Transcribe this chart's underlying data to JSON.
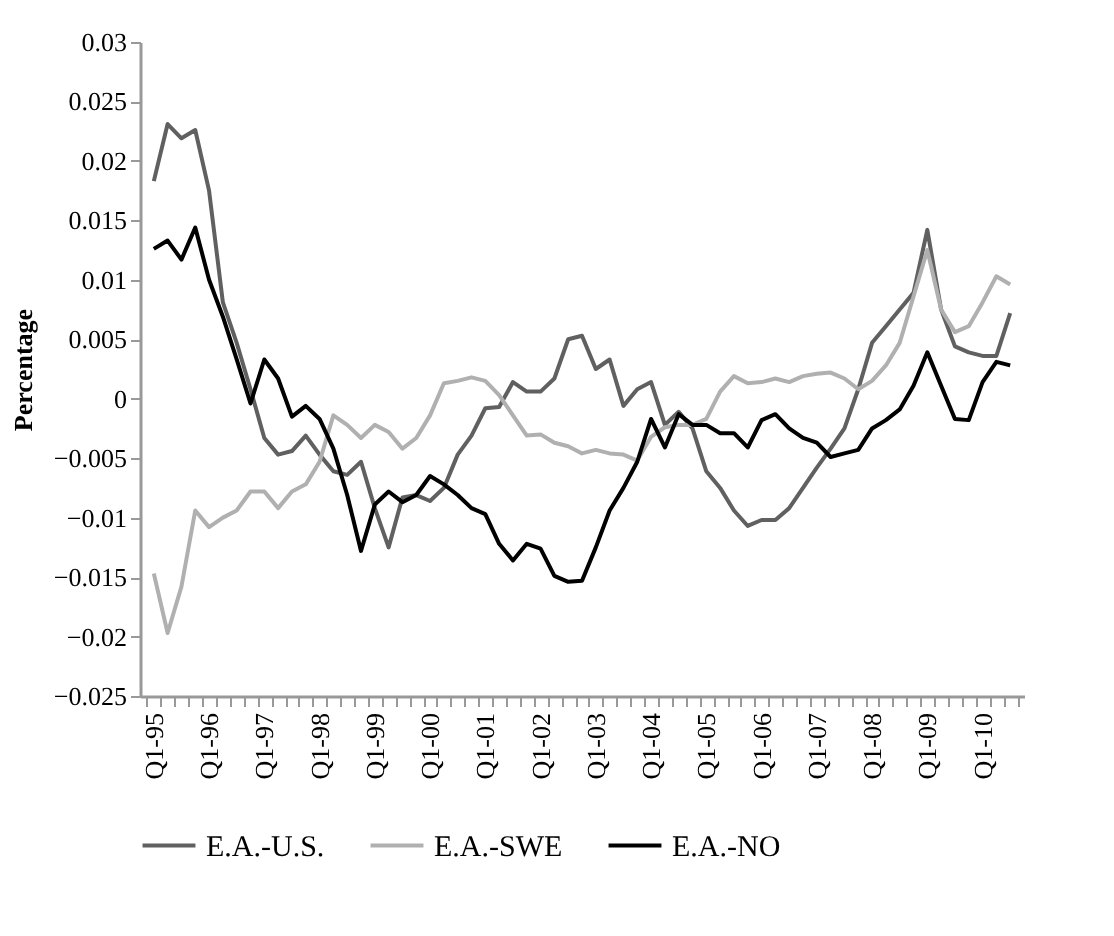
{
  "chart_data": {
    "type": "line",
    "ylabel": "Percentage",
    "categories": [
      "Q1-95",
      null,
      null,
      null,
      "Q1-96",
      null,
      null,
      null,
      "Q1-97",
      null,
      null,
      null,
      "Q1-98",
      null,
      null,
      null,
      "Q1-99",
      null,
      null,
      null,
      "Q1-00",
      null,
      null,
      null,
      "Q1-01",
      null,
      null,
      null,
      "Q1-02",
      null,
      null,
      null,
      "Q1-03",
      null,
      null,
      null,
      "Q1-04",
      null,
      null,
      null,
      "Q1-05",
      null,
      null,
      null,
      "Q1-06",
      null,
      null,
      null,
      "Q1-07",
      null,
      null,
      null,
      "Q1-08",
      null,
      null,
      null,
      "Q1-09",
      null,
      null,
      null,
      "Q1-10",
      null,
      null
    ],
    "series": [
      {
        "name": "E.A.-U.S.",
        "color": "#606060",
        "values": [
          0.0183,
          0.0231,
          0.0219,
          0.0226,
          0.0175,
          0.0081,
          0.0047,
          0.0008,
          -0.0033,
          -0.0047,
          -0.0044,
          -0.0031,
          -0.0047,
          -0.0061,
          -0.0064,
          -0.0053,
          -0.0092,
          -0.0125,
          -0.0083,
          -0.0081,
          -0.0086,
          -0.0075,
          -0.0047,
          -0.0031,
          -0.0008,
          -0.0007,
          0.0014,
          0.0006,
          0.0006,
          0.0017,
          0.005,
          0.0053,
          0.0025,
          0.0033,
          -0.0006,
          0.0008,
          0.0014,
          -0.0022,
          -0.0011,
          -0.0025,
          -0.0061,
          -0.0075,
          -0.0094,
          -0.0107,
          -0.0102,
          -0.0102,
          -0.0092,
          -0.0075,
          -0.0058,
          -0.0042,
          -0.0025,
          0.0008,
          0.0047,
          0.0061,
          0.0075,
          0.0089,
          0.0142,
          0.0075,
          0.0044,
          0.0039,
          0.0036,
          0.0036,
          0.0072
        ]
      },
      {
        "name": "E.A.-SWE",
        "color": "#b0b0b0",
        "values": [
          -0.0147,
          -0.0197,
          -0.0158,
          -0.0094,
          -0.0108,
          -0.01,
          -0.0094,
          -0.0078,
          -0.0078,
          -0.0092,
          -0.0078,
          -0.0072,
          -0.0053,
          -0.0014,
          -0.0022,
          -0.0033,
          -0.0022,
          -0.0028,
          -0.0042,
          -0.0033,
          -0.0014,
          0.0013,
          0.0015,
          0.0018,
          0.0015,
          0.0003,
          -0.0014,
          -0.0031,
          -0.003,
          -0.0037,
          -0.004,
          -0.0046,
          -0.0043,
          -0.0046,
          -0.0047,
          -0.0052,
          -0.0032,
          -0.0024,
          -0.0022,
          -0.0022,
          -0.0017,
          0.0006,
          0.0019,
          0.0013,
          0.0014,
          0.0017,
          0.0014,
          0.0019,
          0.0021,
          0.0022,
          0.0017,
          0.0008,
          0.0015,
          0.0028,
          0.0047,
          0.0086,
          0.0125,
          0.0075,
          0.0056,
          0.0061,
          0.0081,
          0.0103,
          0.0096
        ]
      },
      {
        "name": "E.A.-NO",
        "color": "#000000",
        "values": [
          0.0126,
          0.0133,
          0.0117,
          0.0144,
          0.01,
          0.0069,
          0.0033,
          -0.0004,
          0.0033,
          0.0017,
          -0.0015,
          -0.0006,
          -0.0017,
          -0.0042,
          -0.0081,
          -0.0128,
          -0.0089,
          -0.0078,
          -0.0087,
          -0.0081,
          -0.0065,
          -0.0072,
          -0.0081,
          -0.0092,
          -0.0097,
          -0.0122,
          -0.0136,
          -0.0122,
          -0.0126,
          -0.0149,
          -0.0154,
          -0.0153,
          -0.0125,
          -0.0094,
          -0.0075,
          -0.0053,
          -0.0017,
          -0.0041,
          -0.0013,
          -0.0022,
          -0.0022,
          -0.0029,
          -0.0029,
          -0.0041,
          -0.0018,
          -0.0013,
          -0.0025,
          -0.0033,
          -0.0037,
          -0.0049,
          -0.0046,
          -0.0043,
          -0.0025,
          -0.0018,
          -0.0009,
          0.0011,
          0.0039,
          0.0011,
          -0.0017,
          -0.0018,
          0.0014,
          0.0031,
          0.0028
        ]
      }
    ],
    "ylim": [
      -0.025,
      0.03
    ],
    "yticks": [
      -0.025,
      -0.02,
      -0.015,
      -0.01,
      -0.005,
      0,
      0.005,
      0.01,
      0.015,
      0.02,
      0.025,
      0.03
    ],
    "grid": false,
    "legend": "bottom",
    "marker": "none",
    "line_style": "solid"
  }
}
